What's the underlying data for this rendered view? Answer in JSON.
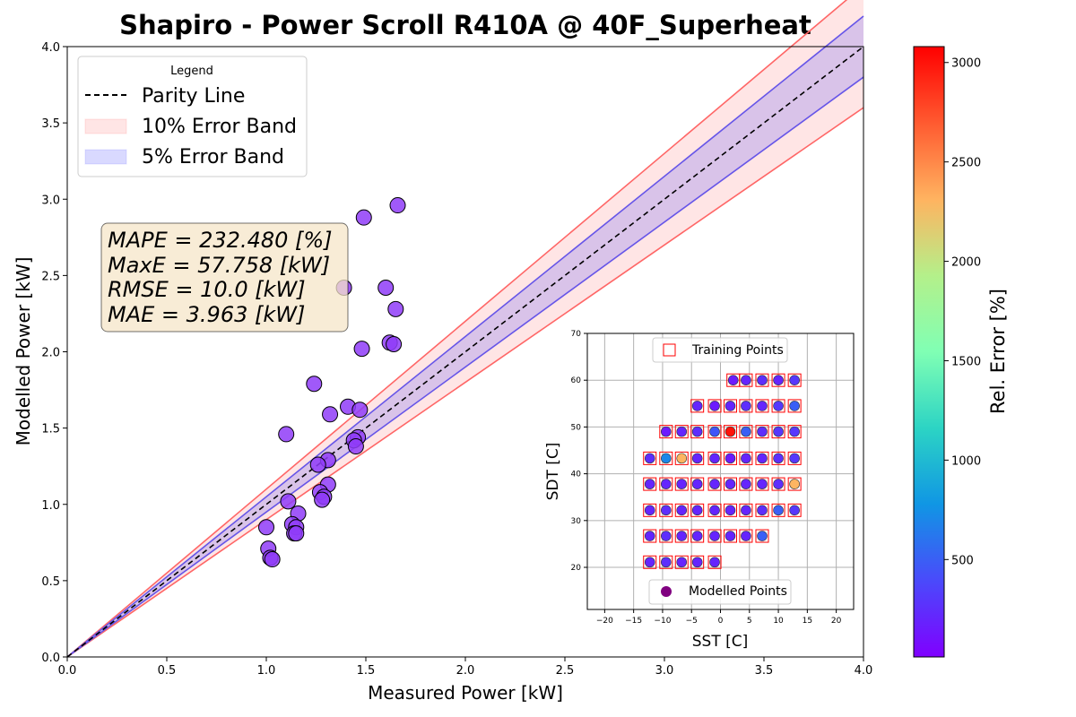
{
  "chart_data": [
    {
      "type": "scatter",
      "title": "Shapiro - Power Scroll R410A @ 40F_Superheat",
      "xlabel": "Measured Power [kW]",
      "ylabel": "Modelled Power [kW]",
      "xlim": [
        0,
        4
      ],
      "ylim": [
        0,
        4
      ],
      "x_ticks": [
        "0.0",
        "0.5",
        "1.0",
        "1.5",
        "2.0",
        "2.5",
        "3.0",
        "3.5",
        "4.0"
      ],
      "y_ticks": [
        "0.0",
        "0.5",
        "1.0",
        "1.5",
        "2.0",
        "2.5",
        "3.0",
        "3.5",
        "4.0"
      ],
      "legend": {
        "title": "Legend",
        "position": "upper-left",
        "entries": [
          "Parity Line",
          "10% Error Band",
          "5% Error Band"
        ]
      },
      "stats": [
        "MAPE = 232.480 [%]",
        "MaxE = 57.758 [kW]",
        "RMSE = 10.0 [kW]",
        "MAE = 3.963 [kW]"
      ],
      "points": [
        {
          "x": 1.66,
          "y": 2.96
        },
        {
          "x": 1.49,
          "y": 2.88
        },
        {
          "x": 1.39,
          "y": 2.42
        },
        {
          "x": 1.6,
          "y": 2.42
        },
        {
          "x": 1.65,
          "y": 2.28
        },
        {
          "x": 1.62,
          "y": 2.06
        },
        {
          "x": 1.64,
          "y": 2.05
        },
        {
          "x": 1.48,
          "y": 2.02
        },
        {
          "x": 1.24,
          "y": 1.79
        },
        {
          "x": 1.41,
          "y": 1.64
        },
        {
          "x": 1.47,
          "y": 1.62
        },
        {
          "x": 1.32,
          "y": 1.59
        },
        {
          "x": 1.1,
          "y": 1.46
        },
        {
          "x": 1.46,
          "y": 1.44
        },
        {
          "x": 1.44,
          "y": 1.42
        },
        {
          "x": 1.45,
          "y": 1.38
        },
        {
          "x": 1.31,
          "y": 1.29
        },
        {
          "x": 1.26,
          "y": 1.26
        },
        {
          "x": 1.31,
          "y": 1.13
        },
        {
          "x": 1.27,
          "y": 1.08
        },
        {
          "x": 1.29,
          "y": 1.05
        },
        {
          "x": 1.28,
          "y": 1.03
        },
        {
          "x": 1.11,
          "y": 1.02
        },
        {
          "x": 1.16,
          "y": 0.94
        },
        {
          "x": 1.13,
          "y": 0.87
        },
        {
          "x": 1.15,
          "y": 0.85
        },
        {
          "x": 1.14,
          "y": 0.81
        },
        {
          "x": 1.15,
          "y": 0.81
        },
        {
          "x": 1.0,
          "y": 0.85
        },
        {
          "x": 1.01,
          "y": 0.71
        },
        {
          "x": 1.02,
          "y": 0.65
        },
        {
          "x": 1.03,
          "y": 0.64
        }
      ],
      "point_color": "#8f3cf8",
      "parity_color": "#000000",
      "band10_color": "#ff6666",
      "band5_color": "#6655e8"
    },
    {
      "type": "scatter",
      "xlabel": "SST [C]",
      "ylabel": "SDT [C]",
      "xlim": [
        -23,
        23
      ],
      "ylim": [
        11,
        70
      ],
      "x_ticks": [
        "−20",
        "−15",
        "−10",
        "−5",
        "0",
        "5",
        "10",
        "15",
        "20"
      ],
      "y_ticks": [
        "20",
        "30",
        "40",
        "50",
        "60",
        "70"
      ],
      "grid": true,
      "legend_top": "Training Points",
      "legend_bottom": "Modelled Points",
      "training_color": "#ff0000",
      "modelled_color": "#800080",
      "points": [
        {
          "sst": 2.2,
          "sdt": 60,
          "err": 150
        },
        {
          "sst": 4.4,
          "sdt": 60,
          "err": 200
        },
        {
          "sst": 7.2,
          "sdt": 60,
          "err": 250
        },
        {
          "sst": 10,
          "sdt": 60,
          "err": 200
        },
        {
          "sst": 12.8,
          "sdt": 60,
          "err": 300
        },
        {
          "sst": -4,
          "sdt": 54.5,
          "err": 200
        },
        {
          "sst": -1,
          "sdt": 54.5,
          "err": 150
        },
        {
          "sst": 1.7,
          "sdt": 54.5,
          "err": 200
        },
        {
          "sst": 4.4,
          "sdt": 54.5,
          "err": 250
        },
        {
          "sst": 7.2,
          "sdt": 54.5,
          "err": 200
        },
        {
          "sst": 10,
          "sdt": 54.5,
          "err": 300
        },
        {
          "sst": 12.8,
          "sdt": 54.5,
          "err": 500
        },
        {
          "sst": -9.4,
          "sdt": 49,
          "err": 150
        },
        {
          "sst": -6.7,
          "sdt": 49,
          "err": 200
        },
        {
          "sst": -4,
          "sdt": 49,
          "err": 250
        },
        {
          "sst": -1,
          "sdt": 49,
          "err": 450
        },
        {
          "sst": 1.7,
          "sdt": 49,
          "err": 3000
        },
        {
          "sst": 4.4,
          "sdt": 49,
          "err": 500
        },
        {
          "sst": 7.2,
          "sdt": 49,
          "err": 250
        },
        {
          "sst": 10,
          "sdt": 49,
          "err": 300
        },
        {
          "sst": 12.8,
          "sdt": 49,
          "err": 300
        },
        {
          "sst": -12.2,
          "sdt": 43.3,
          "err": 250
        },
        {
          "sst": -9.4,
          "sdt": 43.3,
          "err": 700
        },
        {
          "sst": -6.7,
          "sdt": 43.3,
          "err": 2300
        },
        {
          "sst": -4,
          "sdt": 43.3,
          "err": 200
        },
        {
          "sst": -1,
          "sdt": 43.3,
          "err": 200
        },
        {
          "sst": 1.7,
          "sdt": 43.3,
          "err": 150
        },
        {
          "sst": 4.4,
          "sdt": 43.3,
          "err": 200
        },
        {
          "sst": 7.2,
          "sdt": 43.3,
          "err": 200
        },
        {
          "sst": 10,
          "sdt": 43.3,
          "err": 250
        },
        {
          "sst": 12.8,
          "sdt": 43.3,
          "err": 300
        },
        {
          "sst": -12.2,
          "sdt": 37.8,
          "err": 200
        },
        {
          "sst": -9.4,
          "sdt": 37.8,
          "err": 200
        },
        {
          "sst": -6.7,
          "sdt": 37.8,
          "err": 200
        },
        {
          "sst": -4,
          "sdt": 37.8,
          "err": 200
        },
        {
          "sst": -1,
          "sdt": 37.8,
          "err": 200
        },
        {
          "sst": 1.7,
          "sdt": 37.8,
          "err": 200
        },
        {
          "sst": 4.4,
          "sdt": 37.8,
          "err": 200
        },
        {
          "sst": 7.2,
          "sdt": 37.8,
          "err": 200
        },
        {
          "sst": 10,
          "sdt": 37.8,
          "err": 250
        },
        {
          "sst": 12.8,
          "sdt": 37.8,
          "err": 2300
        },
        {
          "sst": -12.2,
          "sdt": 32.2,
          "err": 200
        },
        {
          "sst": -9.4,
          "sdt": 32.2,
          "err": 250
        },
        {
          "sst": -6.7,
          "sdt": 32.2,
          "err": 200
        },
        {
          "sst": -4,
          "sdt": 32.2,
          "err": 200
        },
        {
          "sst": -1,
          "sdt": 32.2,
          "err": 200
        },
        {
          "sst": 1.7,
          "sdt": 32.2,
          "err": 200
        },
        {
          "sst": 4.4,
          "sdt": 32.2,
          "err": 200
        },
        {
          "sst": 7.2,
          "sdt": 32.2,
          "err": 250
        },
        {
          "sst": 10,
          "sdt": 32.2,
          "err": 500
        },
        {
          "sst": 12.8,
          "sdt": 32.2,
          "err": 300
        },
        {
          "sst": -12.2,
          "sdt": 26.7,
          "err": 200
        },
        {
          "sst": -9.4,
          "sdt": 26.7,
          "err": 250
        },
        {
          "sst": -6.7,
          "sdt": 26.7,
          "err": 200
        },
        {
          "sst": -4,
          "sdt": 26.7,
          "err": 200
        },
        {
          "sst": -1,
          "sdt": 26.7,
          "err": 200
        },
        {
          "sst": 1.7,
          "sdt": 26.7,
          "err": 200
        },
        {
          "sst": 4.4,
          "sdt": 26.7,
          "err": 200
        },
        {
          "sst": 7.2,
          "sdt": 26.7,
          "err": 500
        },
        {
          "sst": -12.2,
          "sdt": 21.1,
          "err": 200
        },
        {
          "sst": -9.4,
          "sdt": 21.1,
          "err": 250
        },
        {
          "sst": -6.7,
          "sdt": 21.1,
          "err": 200
        },
        {
          "sst": -4,
          "sdt": 21.1,
          "err": 200
        },
        {
          "sst": -1,
          "sdt": 21.1,
          "err": 200
        }
      ]
    },
    {
      "type": "colorbar",
      "label": "Rel. Error [%]",
      "range": [
        10,
        3080
      ],
      "ticks": [
        "500",
        "1000",
        "1500",
        "2000",
        "2500",
        "3000"
      ],
      "colormap": "rainbow"
    }
  ]
}
